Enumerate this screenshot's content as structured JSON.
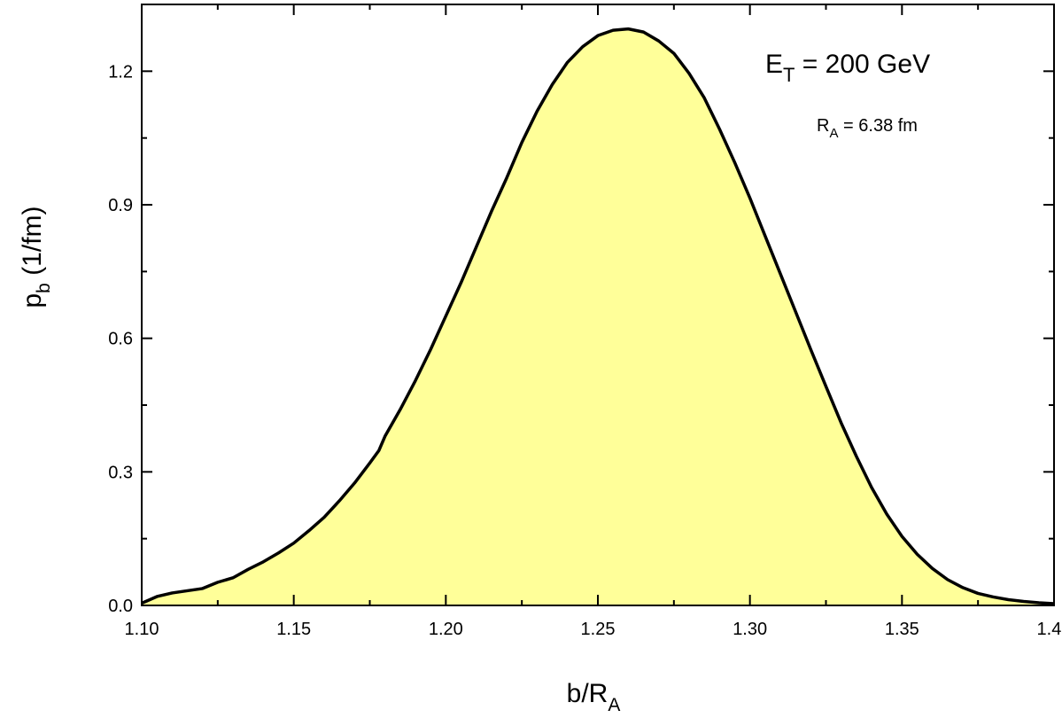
{
  "chart_data": {
    "type": "area",
    "title": "",
    "xlabel": {
      "main": "b/R",
      "sub": "A"
    },
    "ylabel": {
      "main": "p",
      "sub": "b",
      "rest": " (1/fm)"
    },
    "xlim": [
      1.1,
      1.4
    ],
    "ylim": [
      0.0,
      1.35
    ],
    "x_ticks": [
      "1.10",
      "1.15",
      "1.20",
      "1.25",
      "1.30",
      "1.35",
      "1.40"
    ],
    "y_ticks": [
      "0.0",
      "0.3",
      "0.6",
      "0.9",
      "1.2"
    ],
    "grid": false,
    "fill_color": "#ffff99",
    "line_color": "#000000",
    "annotations": {
      "energy": {
        "main": "E",
        "sub": "T",
        "rest": " = 200 GeV"
      },
      "radius": {
        "main": "R",
        "sub": "A",
        "rest": " = 6.38 fm"
      }
    },
    "series": [
      {
        "x": [
          1.1,
          1.105,
          1.11,
          1.115,
          1.12,
          1.125,
          1.13,
          1.135,
          1.14,
          1.145,
          1.15,
          1.155,
          1.16,
          1.165,
          1.17,
          1.175,
          1.178,
          1.18,
          1.185,
          1.19,
          1.195,
          1.2,
          1.205,
          1.21,
          1.215,
          1.22,
          1.225,
          1.23,
          1.235,
          1.24,
          1.245,
          1.25,
          1.255,
          1.26,
          1.265,
          1.27,
          1.275,
          1.28,
          1.285,
          1.29,
          1.295,
          1.3,
          1.305,
          1.31,
          1.315,
          1.32,
          1.325,
          1.33,
          1.335,
          1.34,
          1.345,
          1.35,
          1.355,
          1.36,
          1.365,
          1.37,
          1.375,
          1.38,
          1.385,
          1.39,
          1.395,
          1.4
        ],
        "y": [
          0.005,
          0.02,
          0.028,
          0.033,
          0.038,
          0.052,
          0.062,
          0.081,
          0.098,
          0.118,
          0.14,
          0.168,
          0.198,
          0.235,
          0.275,
          0.32,
          0.348,
          0.38,
          0.44,
          0.505,
          0.575,
          0.65,
          0.725,
          0.805,
          0.885,
          0.96,
          1.04,
          1.11,
          1.17,
          1.22,
          1.255,
          1.28,
          1.292,
          1.295,
          1.288,
          1.268,
          1.24,
          1.195,
          1.14,
          1.07,
          0.995,
          0.915,
          0.83,
          0.745,
          0.66,
          0.575,
          0.492,
          0.41,
          0.335,
          0.265,
          0.205,
          0.155,
          0.115,
          0.083,
          0.058,
          0.04,
          0.027,
          0.019,
          0.013,
          0.009,
          0.006,
          0.004
        ]
      }
    ]
  }
}
